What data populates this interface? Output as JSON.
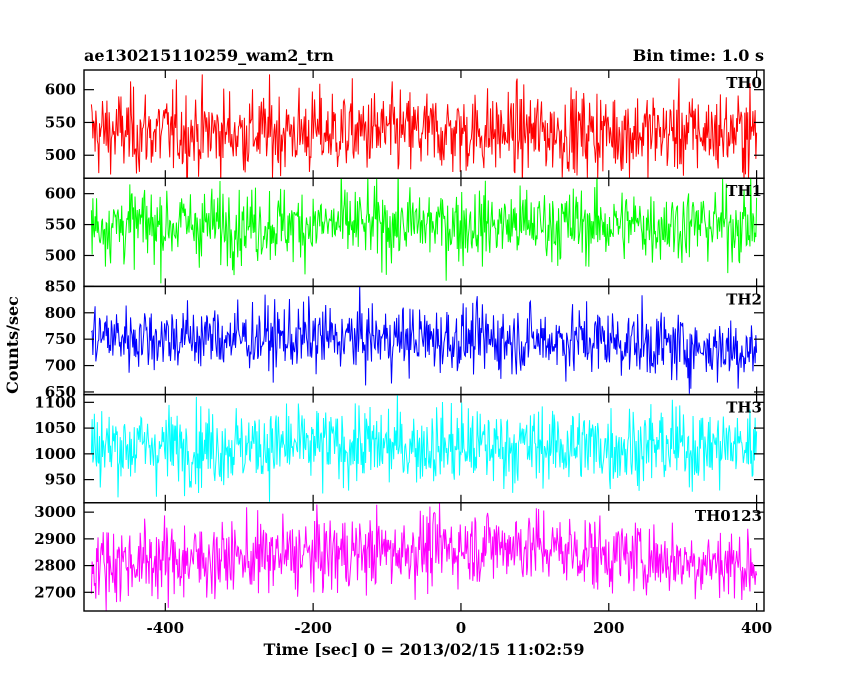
{
  "chart_data": {
    "type": "line",
    "title": "ae130215110259_wam2_trn",
    "bin_time_label": "Bin time: 1.0 s",
    "xlabel": "Time [sec] 0 = 2013/02/15 11:02:59",
    "ylabel": "Counts/sec",
    "xlim": [
      -510,
      410
    ],
    "xticks": [
      -400,
      -200,
      0,
      200,
      400
    ],
    "x_range_data": [
      -500,
      400
    ],
    "panels": [
      {
        "name": "TH0",
        "color": "#ff0000",
        "ylim": [
          465,
          630
        ],
        "yticks": [
          500,
          550,
          600
        ],
        "mean": 535,
        "spread": 32,
        "trend": []
      },
      {
        "name": "TH1",
        "color": "#00ff00",
        "ylim": [
          450,
          625
        ],
        "yticks": [
          500,
          550,
          600
        ],
        "mean": 550,
        "spread": 30,
        "trend": []
      },
      {
        "name": "TH2",
        "color": "#0000ff",
        "ylim": [
          645,
          850
        ],
        "yticks": [
          650,
          700,
          750,
          800,
          850
        ],
        "mean": 752,
        "spread": 32,
        "trend": [
          [
            -500,
            755
          ],
          [
            200,
            748
          ],
          [
            300,
            735
          ],
          [
            400,
            730
          ]
        ]
      },
      {
        "name": "TH3",
        "color": "#00ffff",
        "ylim": [
          905,
          1115
        ],
        "yticks": [
          950,
          1000,
          1050,
          1100
        ],
        "mean": 1015,
        "spread": 38,
        "trend": []
      },
      {
        "name": "TH0123",
        "color": "#ff00ff",
        "ylim": [
          2630,
          3035
        ],
        "yticks": [
          2700,
          2800,
          2900,
          3000
        ],
        "mean": 2840,
        "spread": 70,
        "trend": [
          [
            -500,
            2810
          ],
          [
            -200,
            2840
          ],
          [
            70,
            2880
          ],
          [
            200,
            2840
          ],
          [
            400,
            2800
          ]
        ]
      }
    ]
  }
}
